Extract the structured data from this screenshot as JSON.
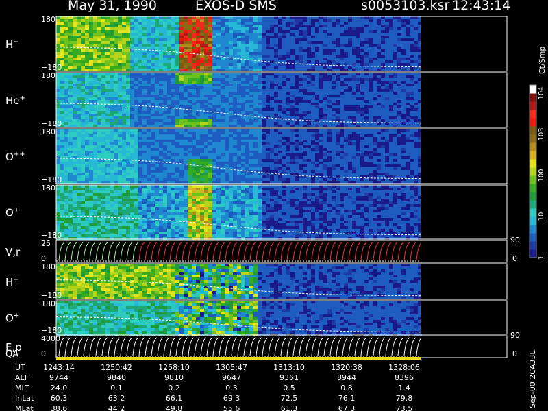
{
  "header": {
    "date": "May 31, 1990",
    "instrument": "EXOS-D SMS",
    "filename": "s0053103.ksr",
    "time": "12:43:14"
  },
  "chart_data": {
    "type": "heatmap",
    "panels": [
      {
        "label": "H",
        "superscript": "+",
        "ymax": "180",
        "ymin": "−180"
      },
      {
        "label": "He",
        "superscript": "+",
        "ymax": "180",
        "ymin": "−180"
      },
      {
        "label": "O",
        "superscript": "++",
        "ymax": "180",
        "ymin": "−180"
      },
      {
        "label": "O",
        "superscript": "+",
        "ymax": "180",
        "ymin": "−180"
      },
      {
        "label": "V,r",
        "superscript": "",
        "ymax": "25",
        "ymin": "0",
        "right_top": "90",
        "right_bottom": "0"
      },
      {
        "label": "H",
        "superscript": "+",
        "ymax": "180",
        "ymin": "−180"
      },
      {
        "label": "O",
        "superscript": "+",
        "ymax": "180",
        "ymin": "−180"
      },
      {
        "label": "E,p",
        "superscript": "",
        "ymax": "4000",
        "ymin": "0",
        "right_top": "90",
        "right_bottom": "0"
      }
    ],
    "qa_label": "QA",
    "colorbar": {
      "label": "Ct/Smp",
      "ticks": [
        {
          "value": 1,
          "text": "1"
        },
        {
          "value": 10,
          "text": "10"
        },
        {
          "value": 100,
          "text": "100"
        },
        {
          "value": 1000,
          "text": "10^3"
        },
        {
          "value": 10000,
          "text": "10^4"
        }
      ],
      "colors": [
        "#1a1a8a",
        "#1e3aa5",
        "#1f5cc0",
        "#1f88d0",
        "#27b8d6",
        "#2ecbc0",
        "#1ea878",
        "#1f9b3a",
        "#35ab22",
        "#6fc21e",
        "#b6d31c",
        "#e4e41e",
        "#d6b01e",
        "#b48a1a",
        "#8c6a14",
        "#7a5a10",
        "#e81c10",
        "#f02a1c",
        "#b01818",
        "#801010",
        "#ffffff"
      ]
    },
    "orbit_table": {
      "rows": [
        {
          "name": "UT",
          "values": [
            "1243:14",
            "1250:42",
            "1258:10",
            "1305:47",
            "1313:10",
            "1320:38",
            "1328:06"
          ]
        },
        {
          "name": "ALT",
          "values": [
            "9744",
            "9840",
            "9810",
            "9647",
            "9361",
            "8944",
            "8396"
          ]
        },
        {
          "name": "MLT",
          "values": [
            "24.0",
            "0.1",
            "0.2",
            "0.3",
            "0.5",
            "0.8",
            "1.4"
          ]
        },
        {
          "name": "InLat",
          "values": [
            "60.3",
            "63.2",
            "66.1",
            "69.3",
            "72.5",
            "76.1",
            "79.8"
          ]
        },
        {
          "name": "MLat",
          "values": [
            "38.6",
            "44.2",
            "49.8",
            "55.6",
            "61.3",
            "67.3",
            "73.5"
          ]
        }
      ]
    },
    "footer_note": "Sep-00 2CA33L"
  }
}
